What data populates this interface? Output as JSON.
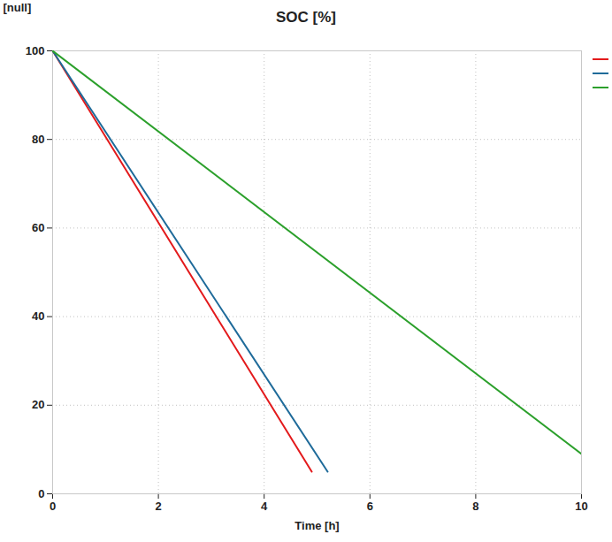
{
  "chart_data": {
    "type": "line",
    "title": "SOC [%]",
    "x_label": "Time [h]",
    "y_label": "[null]",
    "series": [
      {
        "color": "#e31a1c",
        "x": [
          0,
          4.9
        ],
        "values": [
          100,
          5
        ]
      },
      {
        "color": "#1f6b9a",
        "x": [
          0,
          5.2
        ],
        "values": [
          100,
          5
        ]
      },
      {
        "color": "#2ca02c",
        "x": [
          0,
          10
        ],
        "values": [
          100,
          9
        ]
      }
    ],
    "xlim": [
      0,
      10
    ],
    "xticks": [
      0,
      2,
      4,
      6,
      8,
      10
    ],
    "ylim": [
      0,
      100
    ],
    "yticks": [
      0,
      20,
      40,
      60,
      80,
      100
    ],
    "grid": true,
    "legend": "right"
  }
}
